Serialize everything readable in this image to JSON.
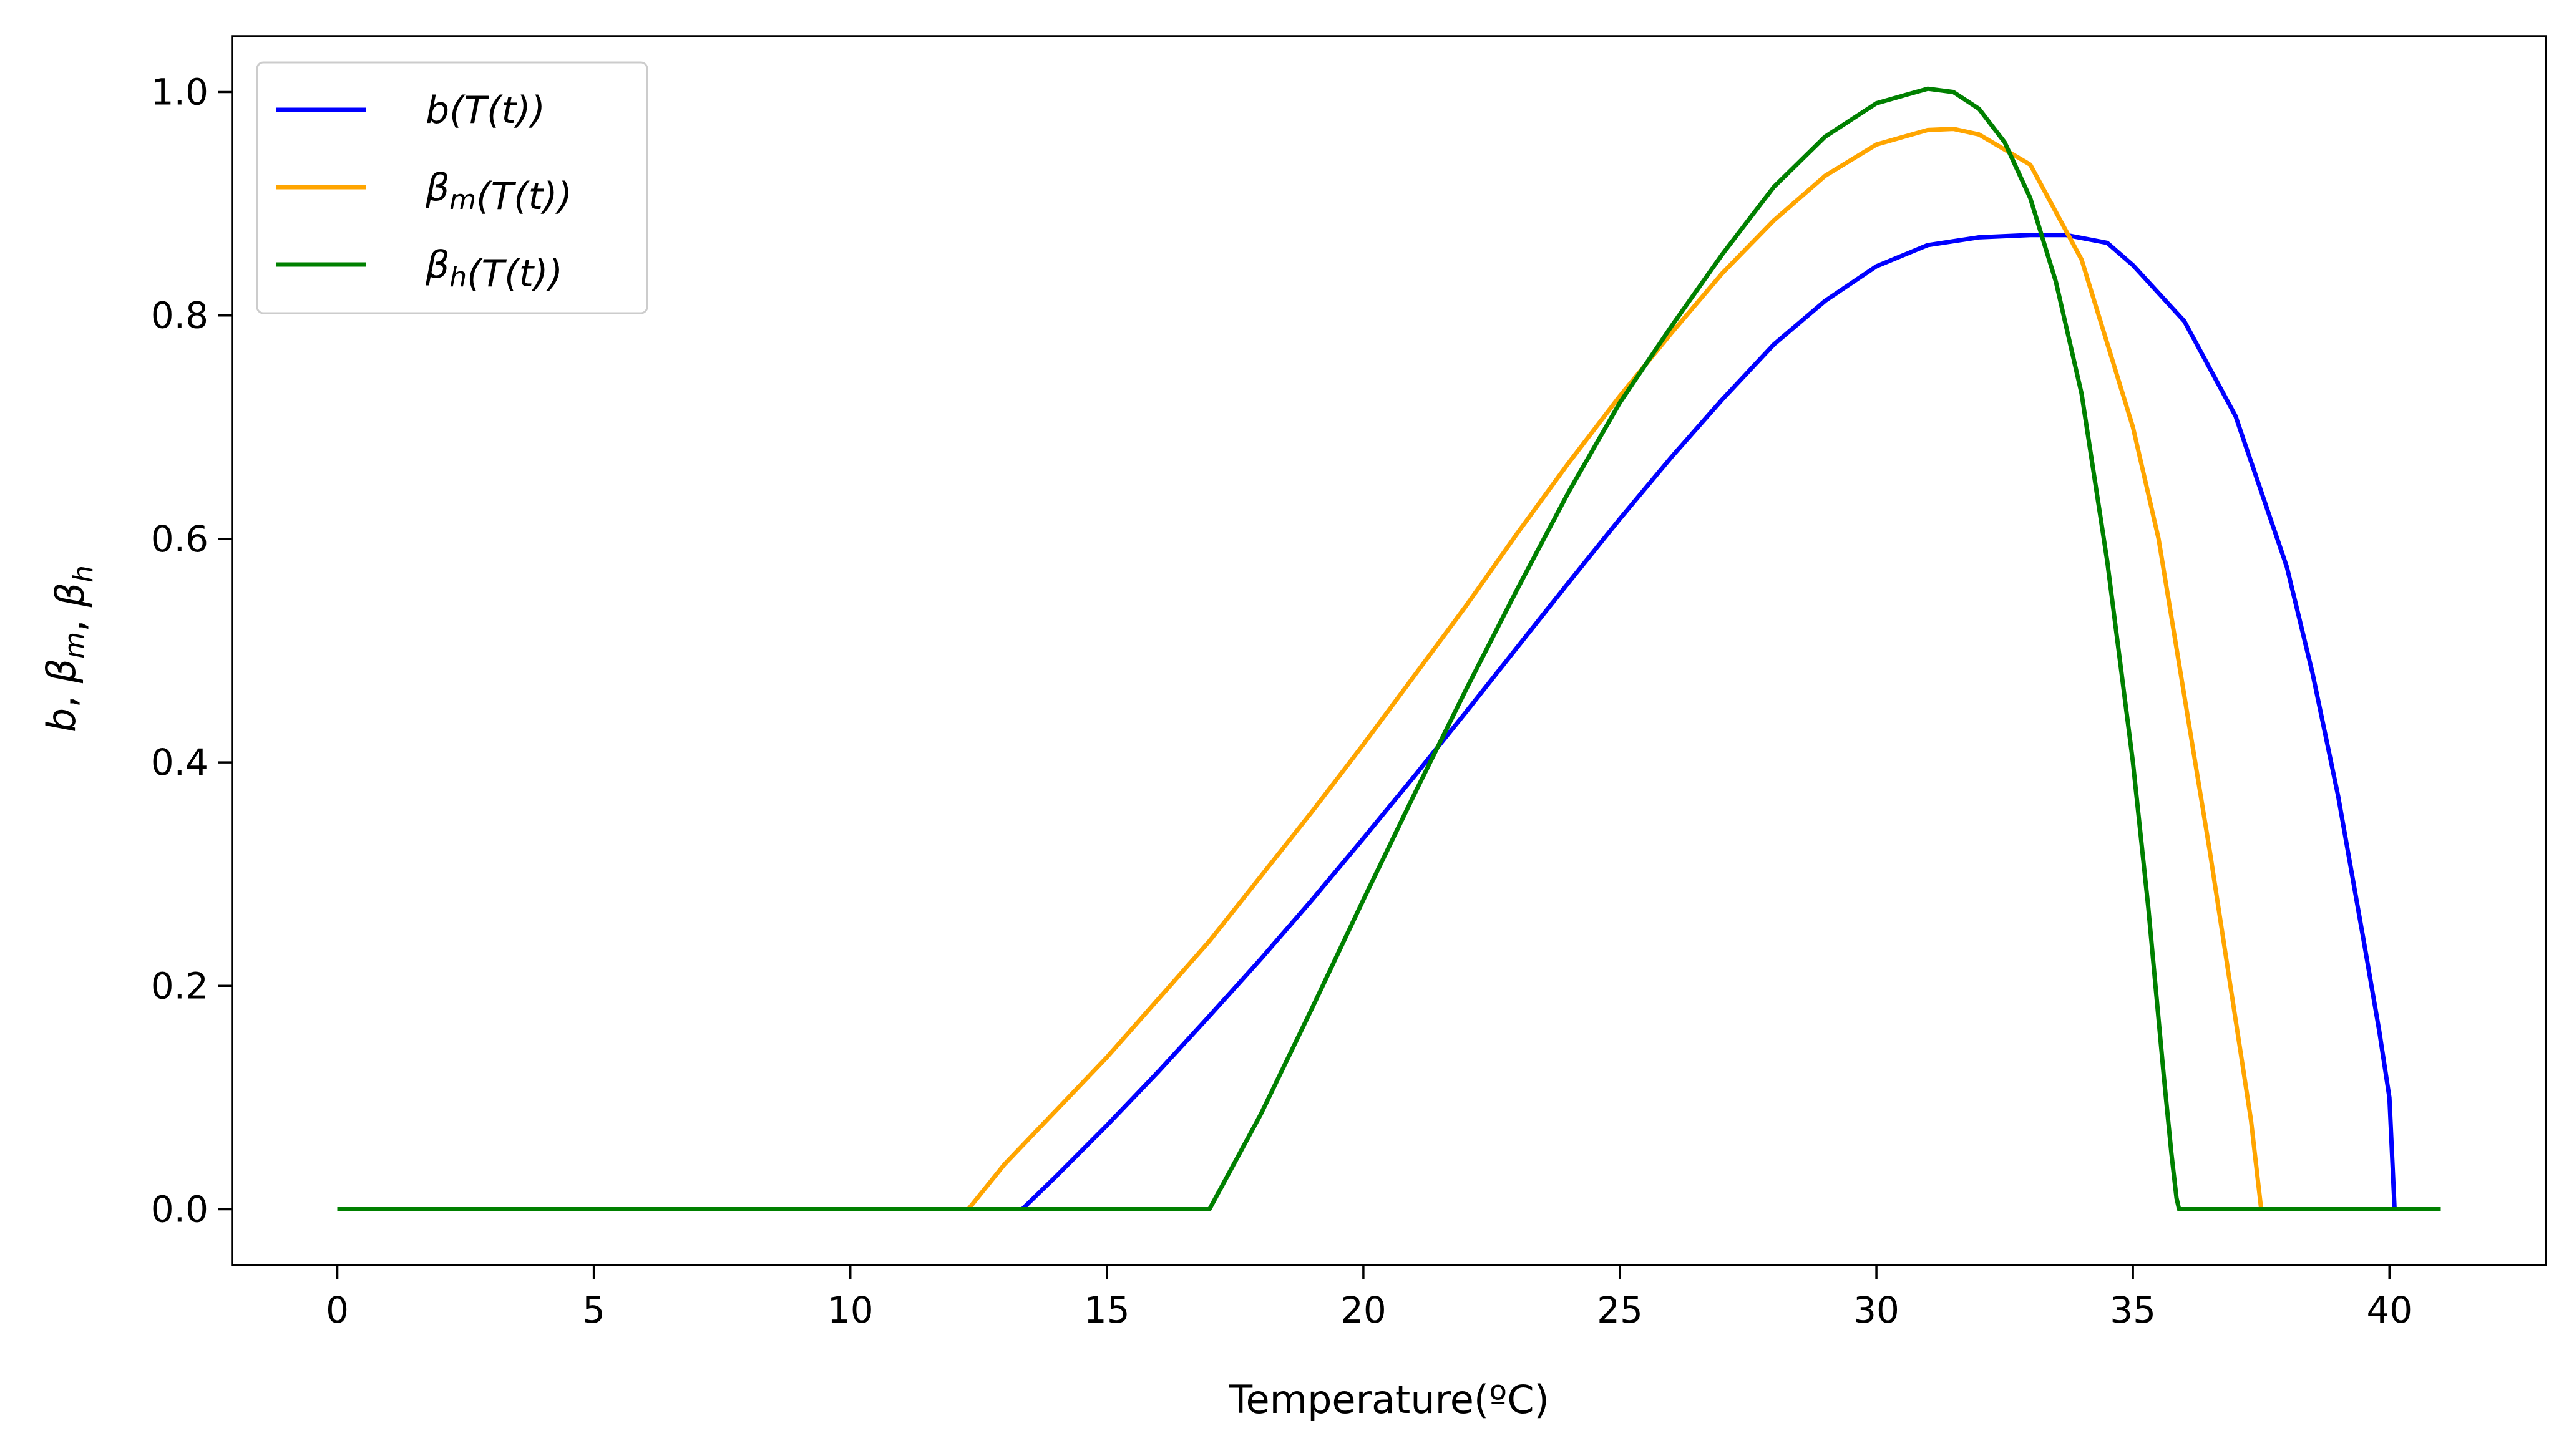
{
  "chart_data": {
    "type": "line",
    "title": "",
    "xlabel": "Temperature(ºC)",
    "ylabel_parts": [
      {
        "t": "b",
        "sub": ""
      },
      {
        "t": ", ",
        "plain": true
      },
      {
        "t": "β",
        "sub": "m"
      },
      {
        "t": ", ",
        "plain": true
      },
      {
        "t": "β",
        "sub": "h"
      }
    ],
    "xlim": [
      -2.05,
      43.05
    ],
    "ylim": [
      -0.05,
      1.05
    ],
    "x_ticks": [
      0,
      5,
      10,
      15,
      20,
      25,
      30,
      35,
      40
    ],
    "x_tick_labels": [
      "0",
      "5",
      "10",
      "15",
      "20",
      "25",
      "30",
      "35",
      "40"
    ],
    "y_ticks": [
      0.0,
      0.2,
      0.4,
      0.6,
      0.8,
      1.0
    ],
    "y_tick_labels": [
      "0.0",
      "0.2",
      "0.4",
      "0.6",
      "0.8",
      "1.0"
    ],
    "grid": false,
    "legend_position": "top-left",
    "series": [
      {
        "name": "b(T(t))",
        "legend": [
          {
            "t": "b"
          },
          {
            "t": "(T(t))"
          }
        ],
        "color": "#0000ff",
        "x": [
          0,
          13.35,
          14,
          15,
          16,
          17,
          18,
          19,
          20,
          21,
          22,
          23,
          24,
          25,
          26,
          27,
          28,
          29,
          30,
          31,
          32,
          33,
          33.7,
          34.5,
          35,
          36,
          37,
          38,
          38.5,
          39,
          39.5,
          39.8,
          40,
          40.1,
          40.1,
          41
        ],
        "y": [
          0,
          0,
          0.029,
          0.075,
          0.123,
          0.173,
          0.224,
          0.277,
          0.332,
          0.388,
          0.445,
          0.503,
          0.561,
          0.618,
          0.673,
          0.725,
          0.774,
          0.813,
          0.844,
          0.863,
          0.87,
          0.872,
          0.872,
          0.865,
          0.845,
          0.795,
          0.71,
          0.575,
          0.48,
          0.37,
          0.24,
          0.16,
          0.1,
          0.0,
          0,
          0
        ]
      },
      {
        "name": "βm(T(t))",
        "legend": [
          {
            "t": "β",
            "sub": "m"
          },
          {
            "t": "(T(t))"
          }
        ],
        "color": "#ffa500",
        "x": [
          0,
          12.3,
          13,
          14,
          15,
          16,
          17,
          18,
          19,
          20,
          21,
          22,
          23,
          24,
          25,
          26,
          27,
          28,
          29,
          30,
          31,
          31.5,
          32,
          33,
          34,
          35,
          35.5,
          36,
          36.5,
          37,
          37.3,
          37.45,
          37.5,
          41
        ],
        "y": [
          0,
          0,
          0.04,
          0.088,
          0.136,
          0.188,
          0.24,
          0.298,
          0.356,
          0.416,
          0.478,
          0.54,
          0.605,
          0.668,
          0.728,
          0.784,
          0.838,
          0.885,
          0.925,
          0.953,
          0.966,
          0.967,
          0.962,
          0.935,
          0.85,
          0.7,
          0.6,
          0.46,
          0.32,
          0.17,
          0.08,
          0.02,
          0,
          0
        ]
      },
      {
        "name": "βh(T(t))",
        "legend": [
          {
            "t": "β",
            "sub": "h"
          },
          {
            "t": "(T(t))"
          }
        ],
        "color": "#008000",
        "x": [
          0,
          17.0,
          18,
          19,
          20,
          21,
          22,
          23,
          24,
          25,
          26,
          27,
          28,
          29,
          30,
          31,
          31.5,
          32,
          32.5,
          33,
          33.5,
          34,
          34.5,
          35,
          35.3,
          35.6,
          35.75,
          35.85,
          35.9,
          41
        ],
        "y": [
          0,
          0,
          0.085,
          0.18,
          0.277,
          0.372,
          0.465,
          0.555,
          0.642,
          0.722,
          0.79,
          0.855,
          0.915,
          0.96,
          0.99,
          1.003,
          1.0,
          0.985,
          0.955,
          0.905,
          0.83,
          0.73,
          0.58,
          0.4,
          0.27,
          0.12,
          0.05,
          0.01,
          0,
          0
        ]
      }
    ]
  }
}
